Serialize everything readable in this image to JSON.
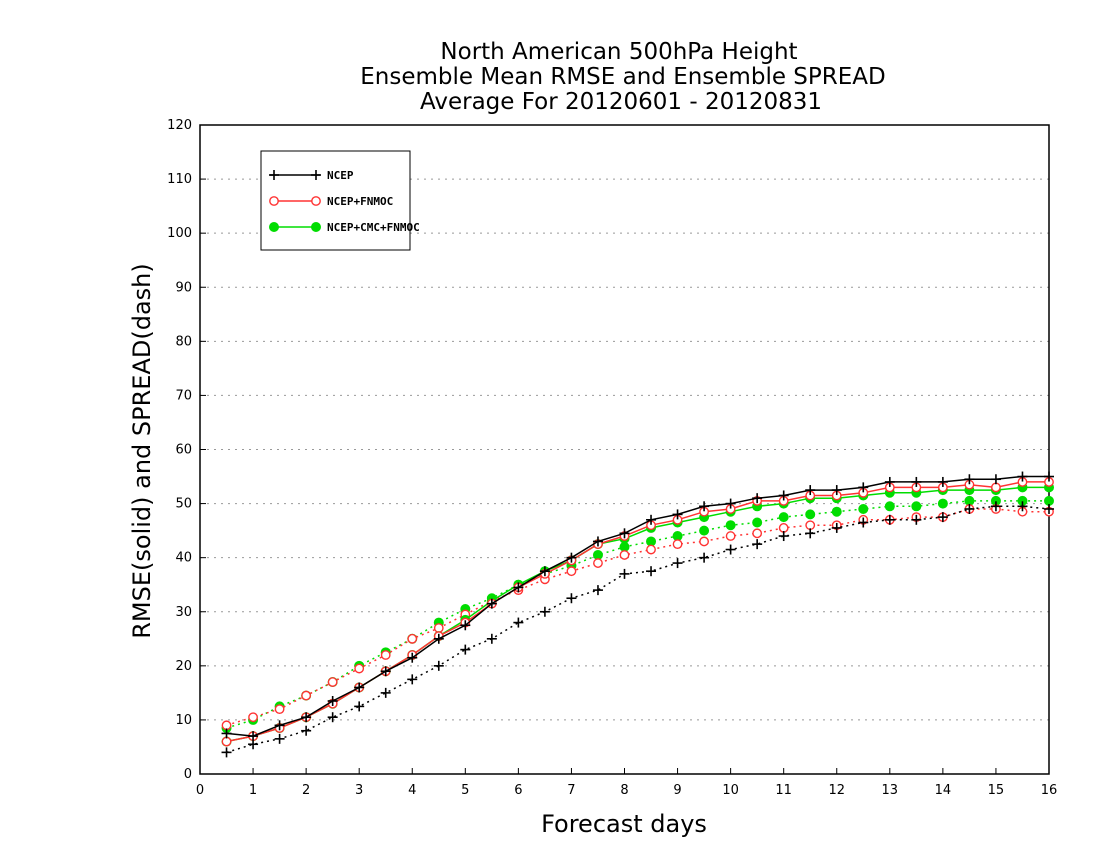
{
  "chart_data": {
    "type": "line",
    "title": [
      "North American 500hPa Height",
      "Ensemble Mean RMSE and Ensemble SPREAD",
      "Average For 20120601 - 20120831"
    ],
    "xlabel": "Forecast days",
    "ylabel": "RMSE(solid) and SPREAD(dash)",
    "xlim": [
      0,
      16
    ],
    "ylim": [
      0,
      120
    ],
    "x_ticks": [
      "0",
      "1",
      "2",
      "3",
      "4",
      "5",
      "6",
      "7",
      "8",
      "9",
      "10",
      "11",
      "12",
      "13",
      "14",
      "15",
      "16"
    ],
    "y_ticks": [
      "0",
      "10",
      "20",
      "30",
      "40",
      "50",
      "60",
      "70",
      "80",
      "90",
      "100",
      "110",
      "120"
    ],
    "grid": "horizontal dotted",
    "legend_position": "top-left",
    "x": [
      0.5,
      1,
      1.5,
      2,
      2.5,
      3,
      3.5,
      4,
      4.5,
      5,
      5.5,
      6,
      6.5,
      7,
      7.5,
      8,
      8.5,
      9,
      9.5,
      10,
      10.5,
      11,
      11.5,
      12,
      12.5,
      13,
      13.5,
      14,
      14.5,
      15,
      15.5,
      16
    ],
    "series": [
      {
        "name": "NCEP",
        "color": "#000000",
        "marker": "plus",
        "rmse": [
          7.5,
          7.0,
          9.0,
          10.5,
          13.5,
          16.0,
          19.0,
          21.5,
          25.0,
          27.5,
          31.5,
          34.5,
          37.5,
          40.0,
          43.0,
          44.5,
          47.0,
          48.0,
          49.5,
          50.0,
          51.0,
          51.5,
          52.5,
          52.5,
          53.0,
          54.0,
          54.0,
          54.0,
          54.5,
          54.5,
          55.0,
          55.0
        ],
        "spread": [
          4.0,
          5.5,
          6.5,
          8.0,
          10.5,
          12.5,
          15.0,
          17.5,
          20.0,
          23.0,
          25.0,
          28.0,
          30.0,
          32.5,
          34.0,
          37.0,
          37.5,
          39.0,
          40.0,
          41.5,
          42.5,
          44.0,
          44.5,
          45.5,
          46.5,
          47.0,
          47.0,
          47.5,
          49.0,
          49.5,
          49.5,
          49.0
        ]
      },
      {
        "name": "NCEP+FNMOC",
        "color": "#ff3333",
        "marker": "circle-open",
        "rmse": [
          6.0,
          7.0,
          8.5,
          10.5,
          13.0,
          16.0,
          19.0,
          22.0,
          25.5,
          28.0,
          31.5,
          34.5,
          37.0,
          39.5,
          42.5,
          44.0,
          46.0,
          47.0,
          48.5,
          49.0,
          50.5,
          50.5,
          51.5,
          51.5,
          52.0,
          53.0,
          53.0,
          53.0,
          53.5,
          53.0,
          54.0,
          54.0
        ],
        "spread": [
          9.0,
          10.5,
          12.0,
          14.5,
          17.0,
          19.5,
          22.0,
          25.0,
          27.0,
          29.5,
          32.0,
          34.0,
          36.0,
          37.5,
          39.0,
          40.5,
          41.5,
          42.5,
          43.0,
          44.0,
          44.5,
          45.5,
          46.0,
          46.0,
          47.0,
          47.0,
          47.5,
          47.5,
          49.0,
          49.0,
          48.5,
          48.5
        ]
      },
      {
        "name": "NCEP+CMC+FNMOC",
        "color": "#00dd00",
        "marker": "circle-filled",
        "rmse": [
          6.0,
          7.0,
          8.5,
          10.5,
          13.0,
          16.0,
          19.0,
          22.0,
          25.5,
          28.5,
          32.0,
          35.0,
          37.5,
          39.5,
          42.5,
          43.5,
          45.5,
          46.5,
          47.5,
          48.5,
          49.5,
          50.0,
          51.0,
          51.0,
          51.5,
          52.0,
          52.0,
          52.5,
          52.5,
          52.5,
          53.0,
          53.0
        ],
        "spread": [
          8.5,
          10.0,
          12.5,
          14.5,
          17.0,
          20.0,
          22.5,
          25.0,
          28.0,
          30.5,
          32.5,
          35.0,
          37.0,
          38.5,
          40.5,
          42.0,
          43.0,
          44.0,
          45.0,
          46.0,
          46.5,
          47.5,
          48.0,
          48.5,
          49.0,
          49.5,
          49.5,
          50.0,
          50.5,
          50.5,
          50.5,
          50.5
        ]
      }
    ]
  }
}
